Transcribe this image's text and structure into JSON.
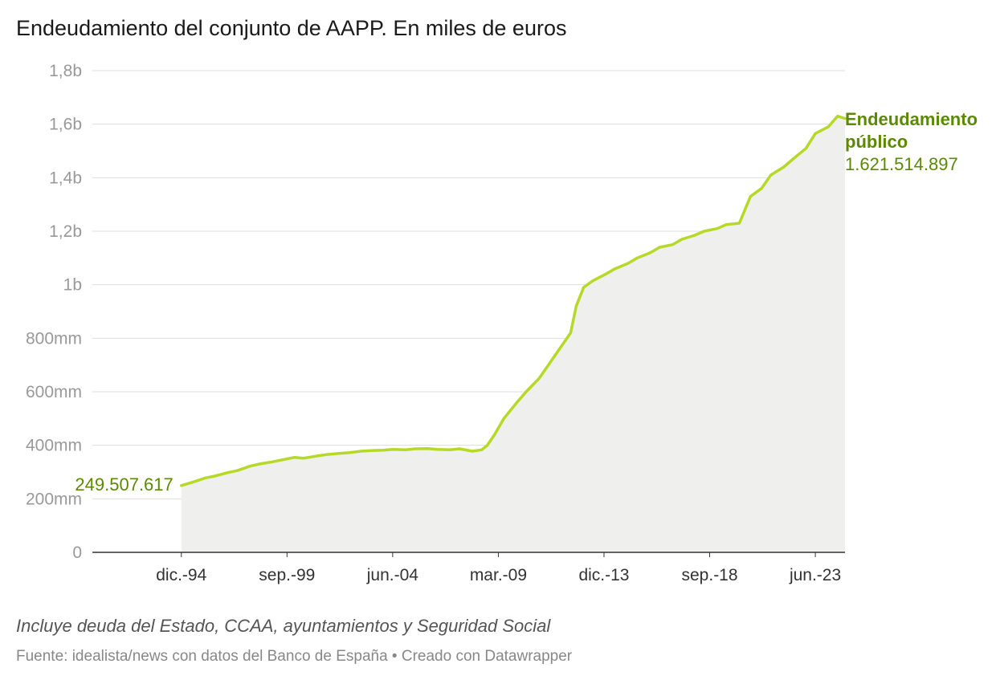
{
  "header": {
    "title": "Endeudamiento del conjunto de AAPP. En miles de euros"
  },
  "footer": {
    "notes": "Incluye deuda del Estado, CCAA, ayuntamientos y Seguridad Social",
    "source": "Fuente: idealista/news con datos del Banco de España • Creado con Datawrapper"
  },
  "chart_data": {
    "type": "area",
    "title": "Endeudamiento del conjunto de AAPP. En miles de euros",
    "xlabel": "",
    "ylabel": "",
    "ylim": [
      0,
      1800000000
    ],
    "xlim": [
      "1990-12",
      "2024-10"
    ],
    "y_ticks": [
      {
        "value": 0,
        "label": "0"
      },
      {
        "value": 200000000,
        "label": "200mm"
      },
      {
        "value": 400000000,
        "label": "400mm"
      },
      {
        "value": 600000000,
        "label": "600mm"
      },
      {
        "value": 800000000,
        "label": "800mm"
      },
      {
        "value": 1000000000,
        "label": "1b"
      },
      {
        "value": 1200000000,
        "label": "1,2b"
      },
      {
        "value": 1400000000,
        "label": "1,4b"
      },
      {
        "value": 1600000000,
        "label": "1,6b"
      },
      {
        "value": 1800000000,
        "label": "1,8b"
      }
    ],
    "x_ticks": [
      {
        "date": "1994-12",
        "label": "dic.-94"
      },
      {
        "date": "1999-09",
        "label": "sep.-99"
      },
      {
        "date": "2004-06",
        "label": "jun.-04"
      },
      {
        "date": "2009-03",
        "label": "mar.-09"
      },
      {
        "date": "2013-12",
        "label": "dic.-13"
      },
      {
        "date": "2018-09",
        "label": "sep.-18"
      },
      {
        "date": "2023-06",
        "label": "jun.-23"
      }
    ],
    "grid": true,
    "line_color": "#b5d926",
    "fill_color": "#efefed",
    "series": [
      {
        "name": "Endeudamiento público",
        "points": [
          [
            "1994-12",
            249507617
          ],
          [
            "1995-06",
            262000000
          ],
          [
            "1996-01",
            278000000
          ],
          [
            "1996-06",
            285000000
          ],
          [
            "1997-01",
            298000000
          ],
          [
            "1997-06",
            305000000
          ],
          [
            "1998-01",
            322000000
          ],
          [
            "1998-06",
            330000000
          ],
          [
            "1999-01",
            338000000
          ],
          [
            "1999-06",
            345000000
          ],
          [
            "2000-01",
            355000000
          ],
          [
            "2000-06",
            352000000
          ],
          [
            "2001-01",
            360000000
          ],
          [
            "2001-06",
            365000000
          ],
          [
            "2002-01",
            370000000
          ],
          [
            "2002-06",
            372000000
          ],
          [
            "2003-01",
            378000000
          ],
          [
            "2003-06",
            380000000
          ],
          [
            "2004-01",
            382000000
          ],
          [
            "2004-06",
            385000000
          ],
          [
            "2005-01",
            383000000
          ],
          [
            "2005-06",
            387000000
          ],
          [
            "2006-01",
            388000000
          ],
          [
            "2006-06",
            385000000
          ],
          [
            "2007-01",
            383000000
          ],
          [
            "2007-06",
            387000000
          ],
          [
            "2008-01",
            378000000
          ],
          [
            "2008-06",
            383000000
          ],
          [
            "2008-09",
            400000000
          ],
          [
            "2009-01",
            440000000
          ],
          [
            "2009-06",
            500000000
          ],
          [
            "2010-01",
            560000000
          ],
          [
            "2010-06",
            600000000
          ],
          [
            "2011-01",
            650000000
          ],
          [
            "2011-06",
            700000000
          ],
          [
            "2012-01",
            770000000
          ],
          [
            "2012-06",
            820000000
          ],
          [
            "2012-09",
            920000000
          ],
          [
            "2013-01",
            990000000
          ],
          [
            "2013-06",
            1015000000
          ],
          [
            "2014-01",
            1040000000
          ],
          [
            "2014-06",
            1060000000
          ],
          [
            "2015-01",
            1080000000
          ],
          [
            "2015-06",
            1100000000
          ],
          [
            "2016-01",
            1120000000
          ],
          [
            "2016-06",
            1140000000
          ],
          [
            "2017-01",
            1150000000
          ],
          [
            "2017-06",
            1170000000
          ],
          [
            "2018-01",
            1185000000
          ],
          [
            "2018-06",
            1200000000
          ],
          [
            "2019-01",
            1210000000
          ],
          [
            "2019-06",
            1225000000
          ],
          [
            "2020-01",
            1230000000
          ],
          [
            "2020-04",
            1280000000
          ],
          [
            "2020-07",
            1330000000
          ],
          [
            "2021-01",
            1360000000
          ],
          [
            "2021-06",
            1410000000
          ],
          [
            "2022-01",
            1440000000
          ],
          [
            "2022-06",
            1470000000
          ],
          [
            "2023-01",
            1510000000
          ],
          [
            "2023-06",
            1565000000
          ],
          [
            "2024-01",
            1590000000
          ],
          [
            "2024-06",
            1630000000
          ],
          [
            "2024-10",
            1621514897
          ]
        ]
      }
    ],
    "annotations": {
      "start_value": "249.507.617",
      "end_label_line1": "Endeudamiento",
      "end_label_line2": "público",
      "end_value": "1.621.514.897"
    }
  }
}
